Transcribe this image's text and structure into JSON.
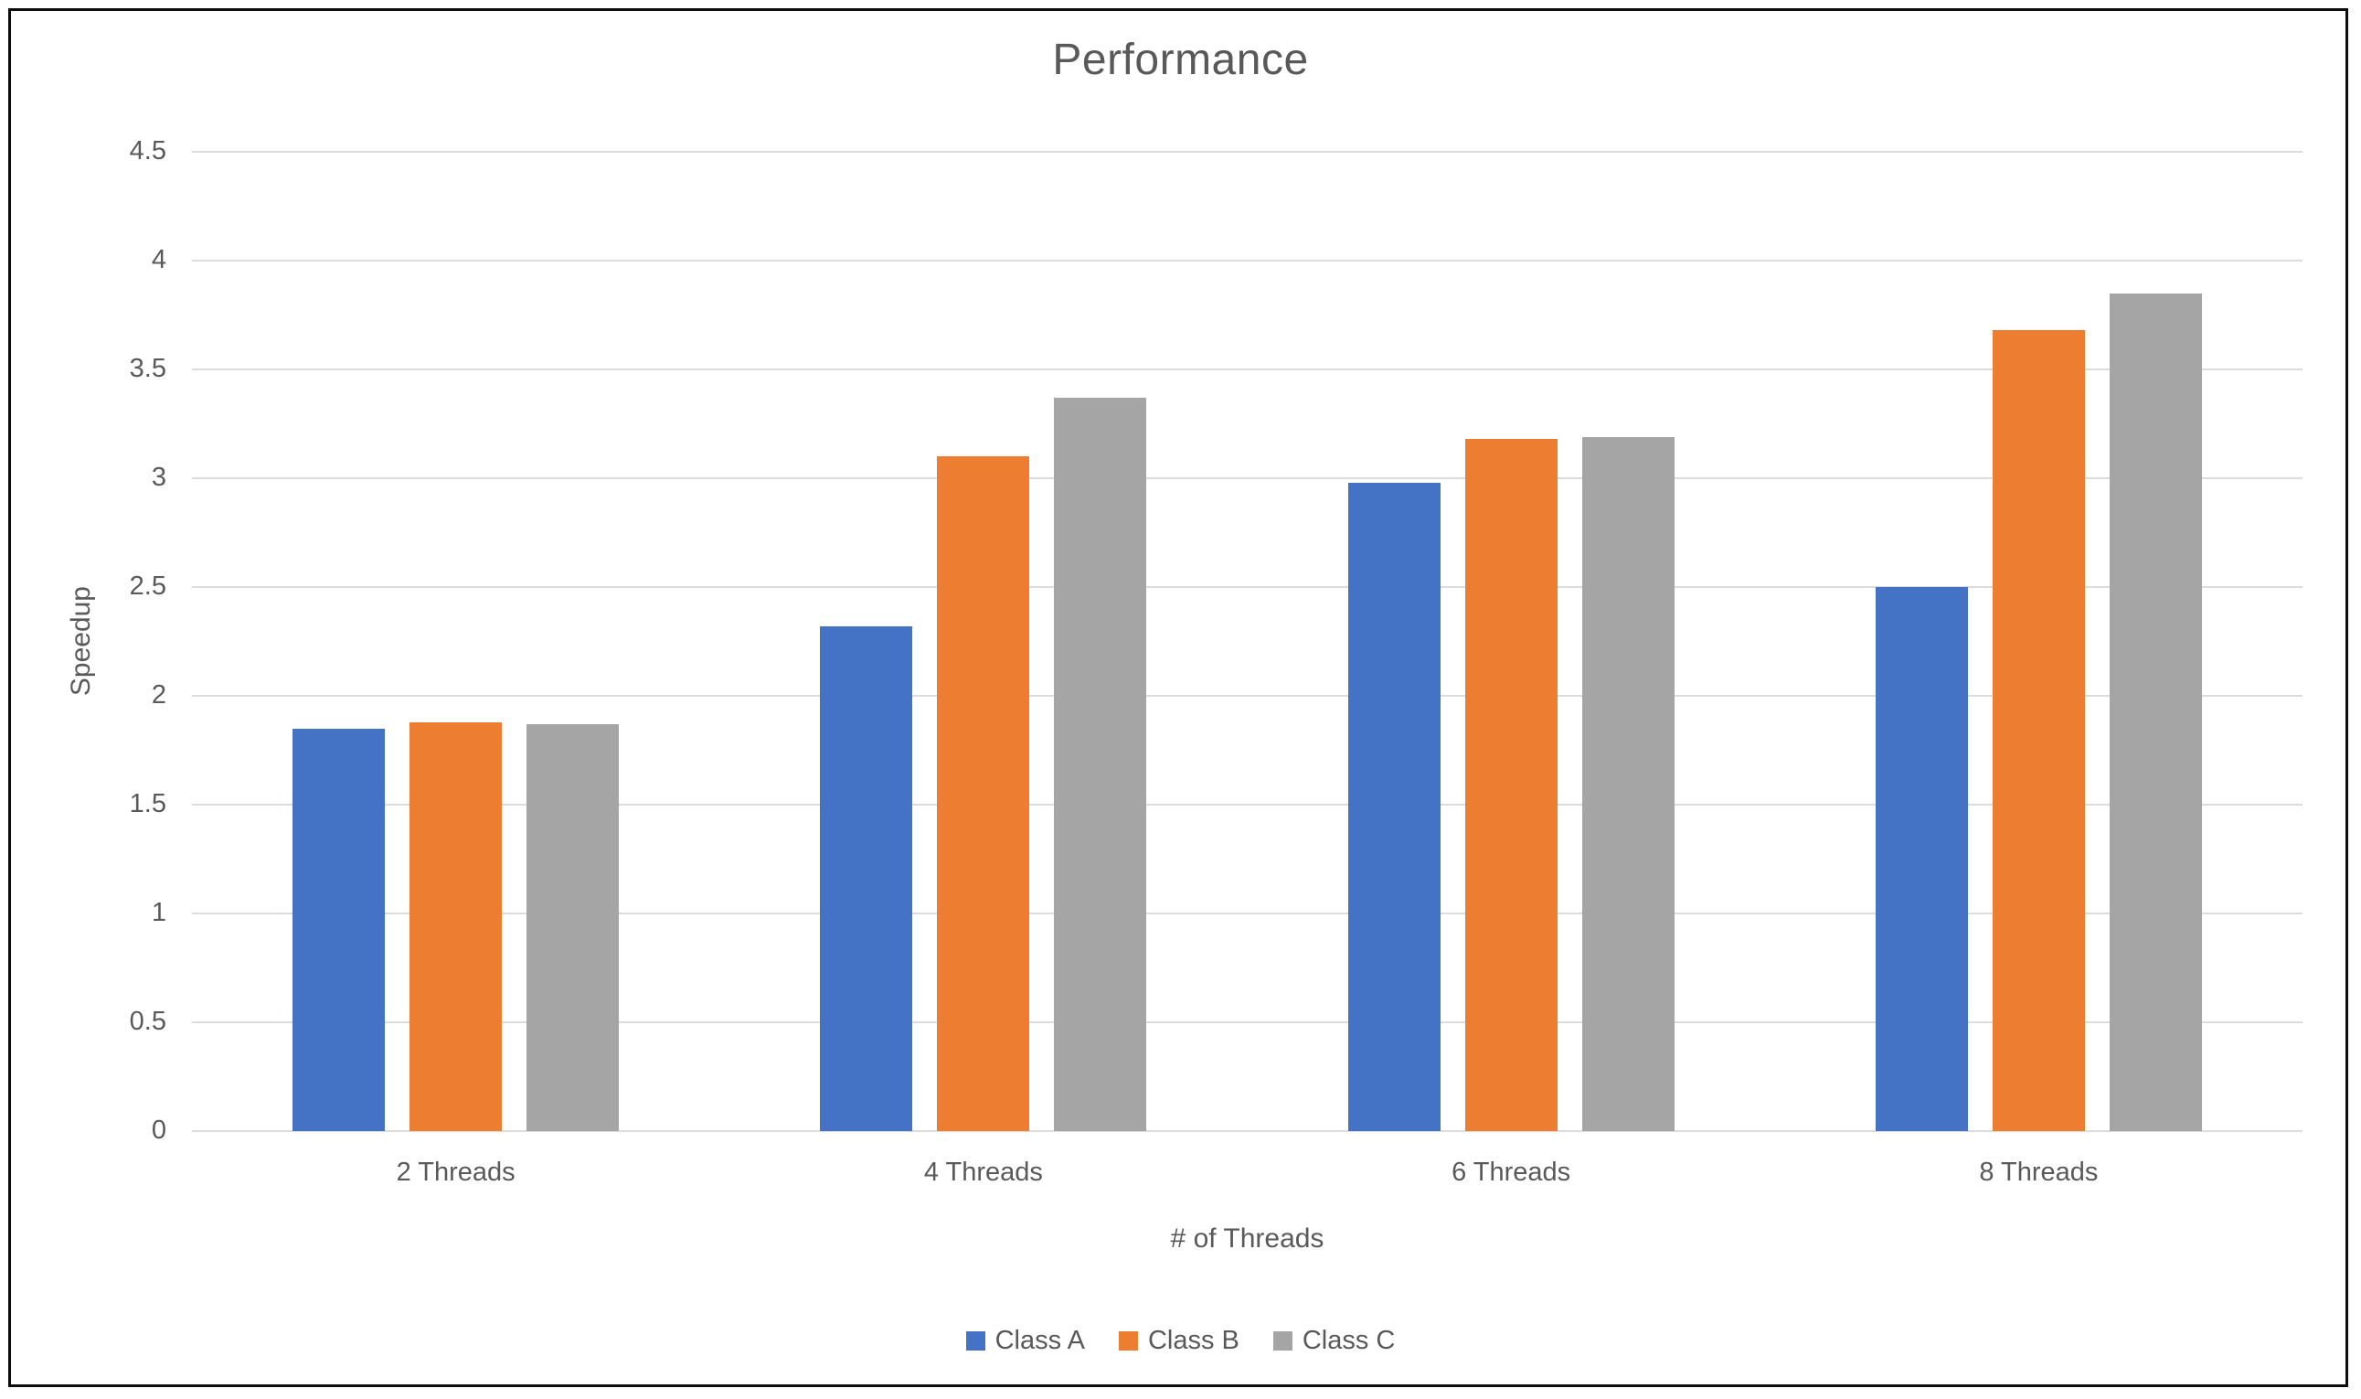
{
  "chart_data": {
    "type": "bar",
    "title": "Performance",
    "xlabel": "# of Threads",
    "ylabel": "Speedup",
    "categories": [
      "2 Threads",
      "4 Threads",
      "6 Threads",
      "8 Threads"
    ],
    "series": [
      {
        "name": "Class A",
        "color": "#4472C4",
        "values": [
          1.85,
          2.32,
          2.98,
          2.5
        ]
      },
      {
        "name": "Class B",
        "color": "#ED7D31",
        "values": [
          1.88,
          3.1,
          3.18,
          3.68
        ]
      },
      {
        "name": "Class C",
        "color": "#A5A5A5",
        "values": [
          1.87,
          3.37,
          3.19,
          3.85
        ]
      }
    ],
    "ylim": [
      0,
      4.5
    ],
    "ytick_step": 0.5,
    "yticks": [
      "0",
      "0.5",
      "1",
      "1.5",
      "2",
      "2.5",
      "3",
      "3.5",
      "4",
      "4.5"
    ],
    "grid": true,
    "legend_position": "bottom"
  },
  "styles": {
    "text_color": "#595959",
    "gridline_color": "#DCDCDC",
    "frame_border_color": "#0D0D0D",
    "background": "#FFFFFF"
  }
}
